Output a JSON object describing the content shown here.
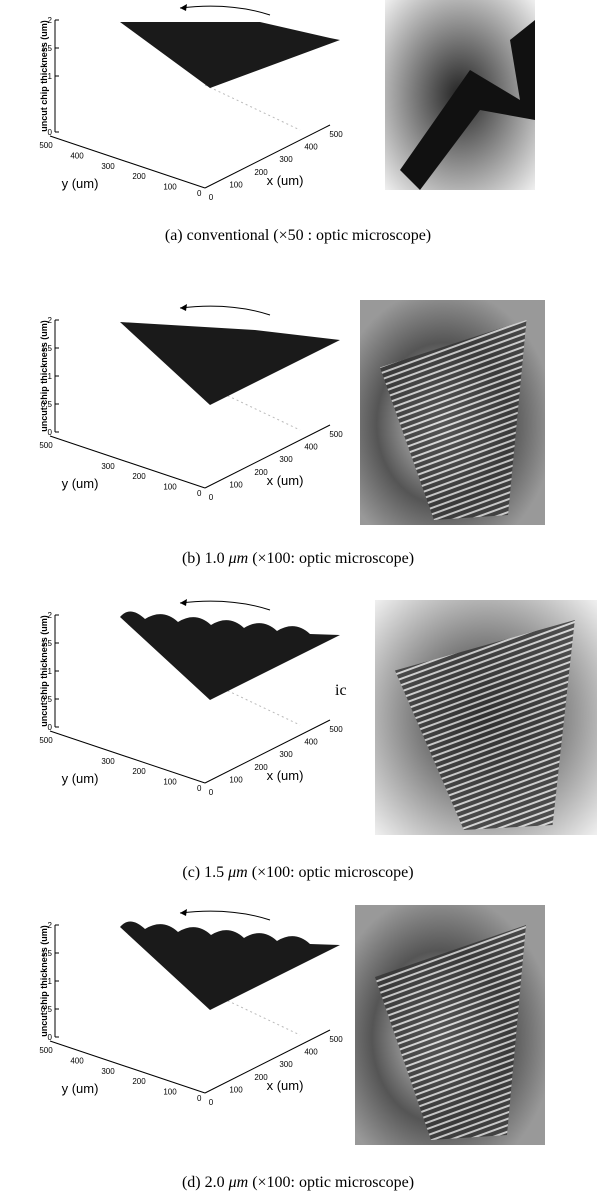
{
  "panels": [
    {
      "z_label": "uncut chip thickness (um)",
      "z_ticks": [
        "2",
        "1.5",
        "1",
        "0"
      ],
      "y_label": "y (um)",
      "y_ticks": [
        "500",
        "400",
        "300",
        "200",
        "100"
      ],
      "x_label": "x (um)",
      "x_ticks": [
        "0",
        "100",
        "200",
        "300",
        "400",
        "500"
      ],
      "corner_tick": "0",
      "caption": [
        {
          "text": "(a) conventional (×50 : optic microscope)",
          "italic": false
        }
      ]
    },
    {
      "z_label": "uncut chip thickness (um)",
      "z_ticks": [
        "2",
        "1.5",
        "1",
        "0.5",
        "0"
      ],
      "y_label": "y (um)",
      "y_ticks": [
        "500",
        "300",
        "200",
        "100"
      ],
      "x_label": "x (um)",
      "x_ticks": [
        "0",
        "100",
        "200",
        "300",
        "400",
        "500"
      ],
      "corner_tick": "0",
      "caption": [
        {
          "text": "(b) 1.0 ",
          "italic": false
        },
        {
          "text": "μm",
          "italic": true
        },
        {
          "text": " (×100: optic microscope)",
          "italic": false
        }
      ]
    },
    {
      "z_label": "uncut chip thickness (um)",
      "z_ticks": [
        "2",
        "1.5",
        "1",
        "0.5",
        "0"
      ],
      "y_label": "y (um)",
      "y_ticks": [
        "500",
        "300",
        "200",
        "100"
      ],
      "x_label": "x (um)",
      "x_ticks": [
        "0",
        "100",
        "200",
        "300",
        "400",
        "500"
      ],
      "corner_tick": "0",
      "stray_text": "ic",
      "caption": [
        {
          "text": "(c) 1.5 ",
          "italic": false
        },
        {
          "text": "μm",
          "italic": true
        },
        {
          "text": " (×100: optic microscope)",
          "italic": false
        }
      ]
    },
    {
      "z_label": "uncut chip thickness (um)",
      "z_ticks": [
        "2",
        "1.5",
        "1",
        "0.5",
        "0"
      ],
      "y_label": "y (um)",
      "y_ticks": [
        "500",
        "400",
        "300",
        "200",
        "100"
      ],
      "x_label": "x (um)",
      "x_ticks": [
        "0",
        "100",
        "200",
        "300",
        "400",
        "500"
      ],
      "corner_tick": "0",
      "caption": [
        {
          "text": "(d) 2.0 ",
          "italic": false
        },
        {
          "text": "μm",
          "italic": true
        },
        {
          "text": " (×100: optic microscope)",
          "italic": false
        }
      ]
    }
  ]
}
